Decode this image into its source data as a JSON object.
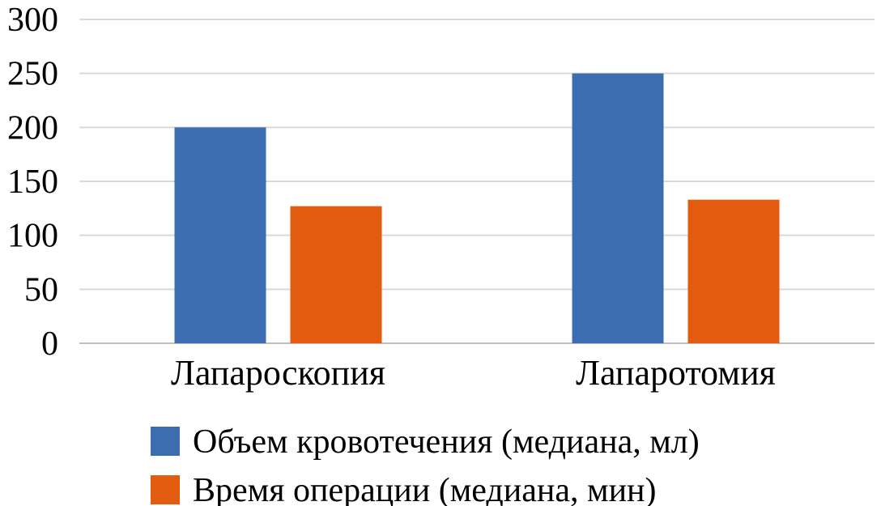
{
  "chart_data": {
    "type": "bar",
    "categories": [
      "Лапароскопия",
      "Лапаротомия"
    ],
    "series": [
      {
        "name": "Объем кровотечения (медиана, мл)",
        "values": [
          200,
          250
        ],
        "color": "#3c6db0"
      },
      {
        "name": "Время операции (медиана, мин)",
        "values": [
          127,
          133
        ],
        "color": "#e35b0e"
      }
    ],
    "ylim": [
      0,
      300
    ],
    "yticks": [
      0,
      50,
      100,
      150,
      200,
      250,
      300
    ],
    "grid": true,
    "legend": "bottom",
    "title": "",
    "xlabel": "",
    "ylabel": ""
  }
}
